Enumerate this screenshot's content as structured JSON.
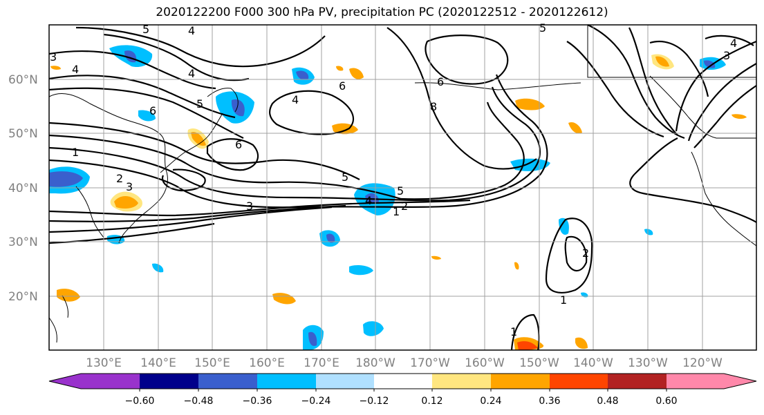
{
  "title": "2020122200 F000 300 hPa PV, precipitation PC (2020122512 - 2020122612)",
  "lat_labels": [
    "60°N",
    "50°N",
    "40°N",
    "30°N",
    "20°N"
  ],
  "lon_labels": [
    "130°E",
    "140°E",
    "150°E",
    "160°E",
    "170°E",
    "180°W",
    "170°W",
    "160°W",
    "150°W",
    "140°W",
    "130°W",
    "120°W"
  ],
  "contour_labels": [
    "5",
    "4",
    "3",
    "4",
    "4",
    "5",
    "6",
    "4",
    "6",
    "1",
    "6",
    "2",
    "3",
    "3",
    "6",
    "8",
    "5",
    "4",
    "5",
    "1",
    "2",
    "2",
    "1",
    "1",
    "3",
    "4",
    "5"
  ],
  "colorbar": {
    "ticks": [
      "−0.60",
      "−0.48",
      "−0.36",
      "−0.24",
      "−0.12",
      "0.12",
      "0.24",
      "0.36",
      "0.48",
      "0.60"
    ],
    "colors": [
      "#9932cc",
      "#00008b",
      "#3a5fcd",
      "#00bfff",
      "#b0e0ff",
      "#ffffff",
      "#ffe680",
      "#ffa500",
      "#ff4500",
      "#b22222",
      "#ff88aa"
    ]
  }
}
